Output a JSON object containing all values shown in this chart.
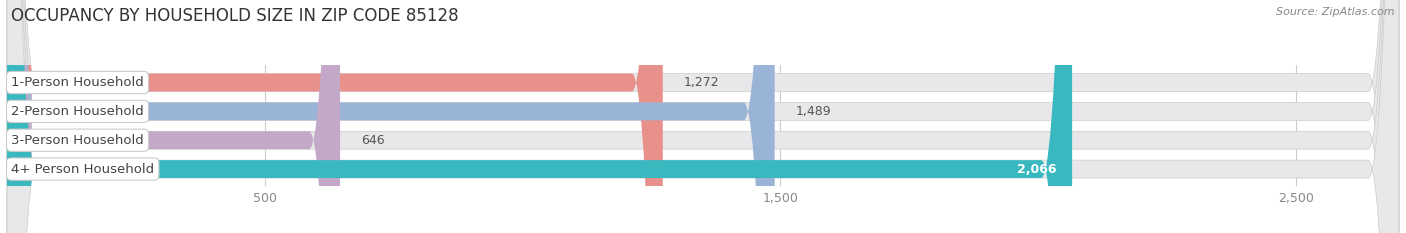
{
  "title": "OCCUPANCY BY HOUSEHOLD SIZE IN ZIP CODE 85128",
  "source": "Source: ZipAtlas.com",
  "categories": [
    "1-Person Household",
    "2-Person Household",
    "3-Person Household",
    "4+ Person Household"
  ],
  "values": [
    1272,
    1489,
    646,
    2066
  ],
  "bar_colors": [
    "#e8908a",
    "#9ab4d8",
    "#c4a8c8",
    "#3ab8c0"
  ],
  "background_color": "#ffffff",
  "bar_background_color": "#e8e8ea",
  "xlim": [
    0,
    2700
  ],
  "xticks": [
    500,
    1500,
    2500
  ],
  "bar_height": 0.62,
  "label_fontsize": 9.5,
  "title_fontsize": 12,
  "value_fontsize": 9
}
